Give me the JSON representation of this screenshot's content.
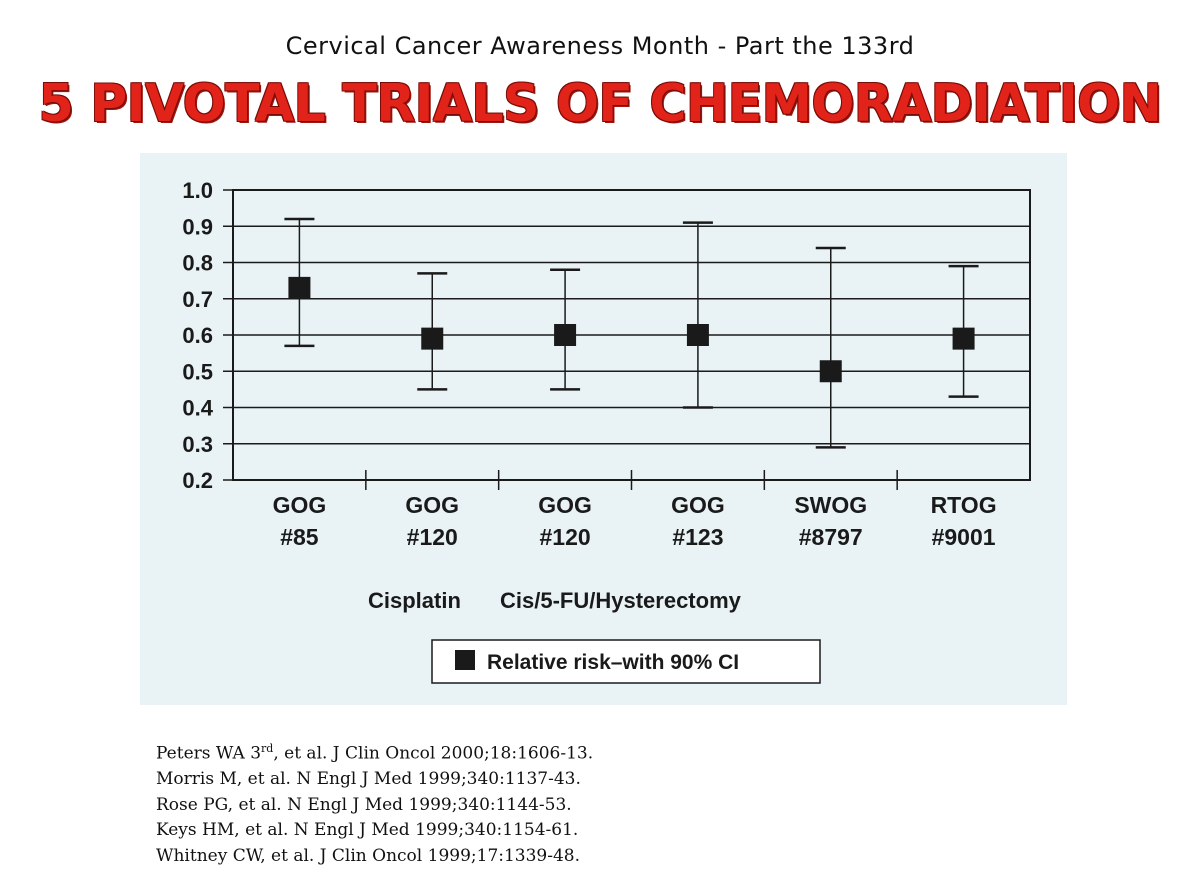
{
  "header": {
    "subtitle": "Cervical Cancer Awareness Month - Part the 133rd",
    "title": "5 PIVOTAL TRIALS OF CHEMORADIATION"
  },
  "colors": {
    "title_red": "#e2231a",
    "chart_background": "#e9f3f6",
    "marker": "#1a1a1a"
  },
  "chart_data": {
    "type": "scatter",
    "ylim": [
      0.2,
      1.0
    ],
    "yticks": [
      "1.0",
      "0.9",
      "0.8",
      "0.7",
      "0.6",
      "0.5",
      "0.4",
      "0.3",
      "0.2"
    ],
    "categories": [
      {
        "line1": "GOG",
        "line2": "#85"
      },
      {
        "line1": "GOG",
        "line2": "#120"
      },
      {
        "line1": "GOG",
        "line2": "#120"
      },
      {
        "line1": "GOG",
        "line2": "#123"
      },
      {
        "line1": "SWOG",
        "line2": "#8797"
      },
      {
        "line1": "RTOG",
        "line2": "#9001"
      }
    ],
    "values": [
      0.73,
      0.59,
      0.6,
      0.6,
      0.5,
      0.59
    ],
    "ci_low": [
      0.57,
      0.45,
      0.45,
      0.4,
      0.29,
      0.43
    ],
    "ci_high": [
      0.92,
      0.77,
      0.78,
      0.91,
      0.84,
      0.79
    ],
    "group_labels": [
      "Cisplatin",
      "Cis/5-FU/Hysterectomy"
    ],
    "legend": "Relative risk–with 90% CI",
    "grid": true
  },
  "references": {
    "ref1_pre": "Peters WA 3",
    "ref1_sup": "rd",
    "ref1_post": ", et al. J Clin Oncol 2000;18:1606-13.",
    "ref2": "Morris M, et al. N Engl J Med 1999;340:1137-43.",
    "ref3": "Rose PG, et al. N Engl J Med 1999;340:1144-53.",
    "ref4": "Keys HM, et al. N Engl J Med 1999;340:1154-61.",
    "ref5": "Whitney CW, et al. J Clin Oncol 1999;17:1339-48."
  }
}
